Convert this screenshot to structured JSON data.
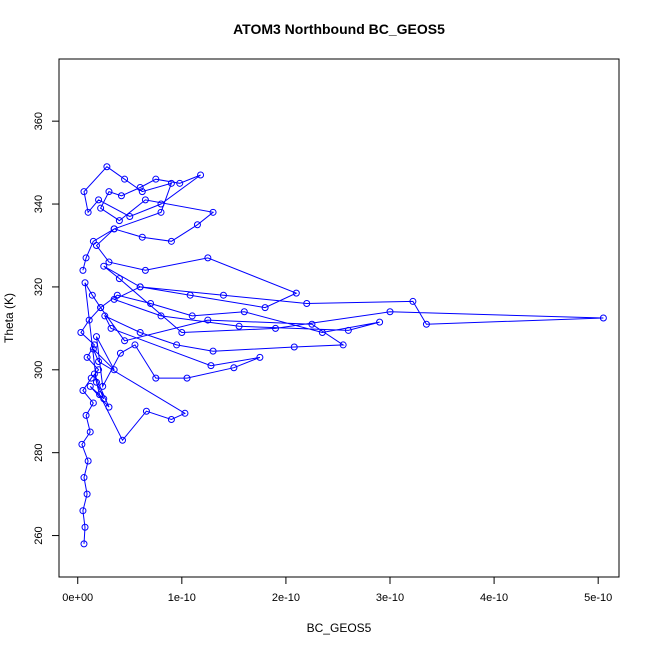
{
  "chart_data": {
    "type": "line",
    "title": "ATOM3 Northbound BC_GEOS5",
    "xlabel": "BC_GEOS5",
    "ylabel": "Theta (K)",
    "xlim": [
      -1.8e-11,
      5.2e-10
    ],
    "ylim": [
      250,
      375
    ],
    "x_ticks": [
      0,
      1e-10,
      2e-10,
      3e-10,
      4e-10,
      5e-10
    ],
    "x_tick_labels": [
      "0e+00",
      "1e-10",
      "2e-10",
      "3e-10",
      "4e-10",
      "5e-10"
    ],
    "y_ticks": [
      260,
      280,
      300,
      320,
      340,
      360
    ],
    "y_tick_labels": [
      "260",
      "280",
      "300",
      "320",
      "340",
      "360"
    ],
    "grid": false,
    "series_color": "#0000ff",
    "series": [
      {
        "x": [
          6e-12,
          7e-12,
          5e-12,
          9e-12,
          6e-12,
          1e-11,
          4e-12,
          1.2e-11,
          8e-12,
          1.5e-11,
          5e-12,
          1.3e-11,
          2e-11,
          9e-12,
          1.6e-11,
          3e-12,
          1.1e-11,
          2.2e-11,
          1.4e-11,
          7e-12,
          1.8e-11,
          2.5e-11,
          1.2e-11,
          3e-11,
          1.6e-11,
          2.1e-11,
          4.3e-11,
          6.6e-11,
          9e-11,
          1.03e-10,
          2e-11,
          1.5e-11,
          3.5e-11,
          1.8e-11,
          2.4e-11,
          4.1e-11,
          5.5e-11,
          7.5e-11,
          1.05e-10,
          1.5e-10,
          1.75e-10,
          1.28e-10,
          3.2e-11,
          2.6e-11,
          6e-11,
          9.5e-11,
          1.3e-10,
          2.08e-10,
          2.55e-10,
          2.25e-10,
          1.25e-10,
          4.5e-11,
          2.2e-11,
          3.8e-11,
          7e-11,
          1.1e-10,
          1.6e-10,
          2.35e-10,
          2.9e-10,
          2.6e-10,
          1.55e-10,
          8e-11,
          3.5e-11,
          6e-11,
          1.4e-10,
          2.2e-10,
          3.22e-10,
          3.35e-10,
          5.05e-10,
          3e-10,
          1.9e-10,
          1e-10,
          4e-11,
          2.5e-11,
          6e-11,
          1.08e-10,
          1.8e-10,
          2.1e-10,
          1.25e-10,
          6.5e-11,
          3e-11,
          1.8e-11,
          3.5e-11,
          6.2e-11,
          9e-11,
          1.15e-10,
          1.3e-10,
          6.5e-11,
          4e-11,
          2.2e-11,
          3e-11,
          4.2e-11,
          6e-11,
          7.5e-11,
          9.8e-11,
          1.18e-10,
          8e-11,
          5e-11,
          2e-11,
          1e-11,
          6e-12,
          2.8e-11,
          4.5e-11,
          6.2e-11,
          9e-11,
          8e-11,
          3.5e-11,
          1.5e-11,
          8e-12,
          5e-12
        ],
        "y": [
          258,
          262,
          266,
          270,
          274,
          278,
          282,
          285,
          289,
          292,
          295,
          298,
          300,
          303,
          306,
          309,
          312,
          315,
          318,
          321,
          297,
          293,
          296,
          291,
          299,
          294,
          283,
          290,
          288,
          289.5,
          302,
          305,
          300,
          308,
          296,
          304,
          306,
          298,
          298,
          300.5,
          303,
          301,
          310,
          313,
          309,
          306,
          304.5,
          305.5,
          306,
          311,
          312,
          307,
          315,
          318,
          316,
          313,
          314,
          309,
          311.5,
          309.5,
          310.5,
          313,
          317,
          320,
          318,
          316,
          316.5,
          311,
          312.5,
          314,
          310,
          309,
          322,
          325,
          320,
          318,
          315,
          318.5,
          327,
          324,
          326,
          330,
          334,
          332,
          331,
          335,
          338,
          341,
          336,
          339,
          343,
          342,
          344,
          346,
          345,
          347,
          340,
          337,
          341,
          338,
          343,
          349,
          346,
          343,
          345,
          338,
          334,
          331,
          327,
          324
        ]
      }
    ]
  }
}
